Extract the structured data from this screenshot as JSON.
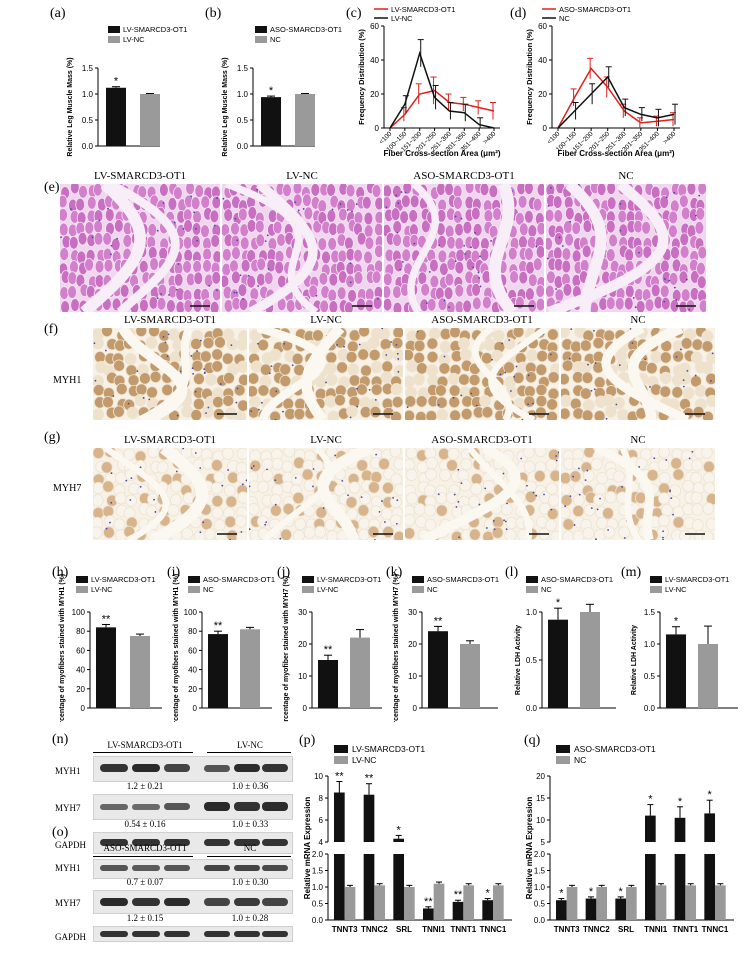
{
  "panel_labels": {
    "a": "(a)",
    "b": "(b)",
    "c": "(c)",
    "d": "(d)",
    "e": "(e)",
    "f": "(f)",
    "g": "(g)",
    "h": "(h)",
    "i": "(i)",
    "j": "(j)",
    "k": "(k)",
    "l": "(l)",
    "m": "(m)",
    "n": "(n)",
    "o": "(o)",
    "p": "(p)",
    "q": "(q)"
  },
  "colors": {
    "black": "#111111",
    "gray": "#9a9a9a",
    "red": "#e0201b",
    "he_pink": "#d98ad2",
    "ihc_brown": "#c9a47a",
    "blot_band": "#2f2f2f"
  },
  "histology": {
    "groups": [
      "LV-SMARCD3-OT1",
      "LV-NC",
      "ASO-SMARCD3-OT1",
      "NC"
    ],
    "row_f_label": "MYH1",
    "row_g_label": "MYH7"
  },
  "blots": {
    "n": {
      "headers": [
        "LV-SMARCD3-OT1",
        "LV-NC"
      ],
      "rows": [
        {
          "label": "MYH1",
          "values": [
            "1.2 ± 0.21",
            "1.0 ± 0.36"
          ]
        },
        {
          "label": "MYH7",
          "values": [
            "0.54 ± 0.16",
            "1.0 ± 0.33"
          ]
        },
        {
          "label": "GAPDH",
          "values": [
            "",
            ""
          ]
        }
      ]
    },
    "o": {
      "headers": [
        "ASO-SMARCD3-OT1",
        "NC"
      ],
      "rows": [
        {
          "label": "MYH1",
          "values": [
            "0.7 ± 0.07",
            "1.0 ± 0.30"
          ]
        },
        {
          "label": "MYH7",
          "values": [
            "1.2 ± 0.15",
            "1.0 ± 0.28"
          ]
        },
        {
          "label": "GAPDH",
          "values": [
            "",
            ""
          ]
        }
      ]
    }
  },
  "chart_data": [
    {
      "id": "a",
      "type": "bar",
      "ylabel": "Relative Leg Muscle Mass (%)",
      "ylim": [
        0,
        1.5
      ],
      "yticks": [
        "0.0",
        "0.5",
        "1.0",
        "1.5"
      ],
      "series": [
        {
          "name": "LV-SMARCD3-OT1",
          "color": "#111111",
          "values": [
            1.12
          ]
        },
        {
          "name": "LV-NC",
          "color": "#9a9a9a",
          "values": [
            1.0
          ]
        }
      ],
      "errors": [
        0.02,
        0.01
      ],
      "annotations": [
        "*",
        ""
      ]
    },
    {
      "id": "b",
      "type": "bar",
      "ylabel": "Relative Leg Muscle Mass (%)",
      "ylim": [
        0,
        1.5
      ],
      "yticks": [
        "0.0",
        "0.5",
        "1.0",
        "1.5"
      ],
      "series": [
        {
          "name": "ASO-SMARCD3-OT1",
          "color": "#111111",
          "values": [
            0.94
          ]
        },
        {
          "name": "NC",
          "color": "#9a9a9a",
          "values": [
            1.0
          ]
        }
      ],
      "errors": [
        0.02,
        0.01
      ],
      "annotations": [
        "*",
        ""
      ]
    },
    {
      "id": "c",
      "type": "line",
      "xlabel": "Fiber Cross-section Area (μm²)",
      "ylabel": "Frequency Distribution (%)",
      "ylim": [
        0,
        60
      ],
      "yticks": [
        "0",
        "20",
        "40",
        "60"
      ],
      "categories": [
        "<100",
        "100~150",
        "151~200",
        "201~250",
        "251~300",
        "301~350",
        "351~400",
        ">400"
      ],
      "series": [
        {
          "name": "LV-SMARCD3-OT1",
          "color": "#e0201b",
          "values": [
            0,
            8,
            20,
            22,
            15,
            14,
            12,
            10
          ],
          "errors": [
            0,
            4,
            6,
            8,
            5,
            4,
            4,
            5
          ]
        },
        {
          "name": "LV-NC",
          "color": "#111111",
          "values": [
            0,
            14,
            44,
            18,
            10,
            9,
            2,
            0
          ],
          "errors": [
            0,
            5,
            8,
            7,
            5,
            5,
            4,
            0
          ]
        }
      ]
    },
    {
      "id": "d",
      "type": "line",
      "xlabel": "Fiber Cross-section Area (μm²)",
      "ylabel": "Frequency Distribution (%)",
      "ylim": [
        0,
        60
      ],
      "yticks": [
        "0",
        "20",
        "40",
        "60"
      ],
      "categories": [
        "<100",
        "100~150",
        "151~200",
        "201~250",
        "251~300",
        "301~350",
        "351~400",
        ">400"
      ],
      "series": [
        {
          "name": "ASO-SMARCD3-OT1",
          "color": "#e0201b",
          "values": [
            0,
            18,
            35,
            24,
            10,
            3,
            4,
            5
          ],
          "errors": [
            0,
            5,
            6,
            6,
            4,
            3,
            3,
            4
          ]
        },
        {
          "name": "NC",
          "color": "#111111",
          "values": [
            0,
            10,
            20,
            30,
            12,
            8,
            6,
            8
          ],
          "errors": [
            0,
            5,
            6,
            6,
            5,
            4,
            5,
            6
          ]
        }
      ]
    },
    {
      "id": "h",
      "type": "bar",
      "ylabel": "The percentage of myofibers stained with MYH1 (%)",
      "ylim": [
        0,
        100
      ],
      "yticks": [
        "0",
        "20",
        "40",
        "60",
        "80",
        "100"
      ],
      "series": [
        {
          "name": "LV-SMARCD3-OT1",
          "color": "#111111",
          "values": [
            84
          ]
        },
        {
          "name": "LV-NC",
          "color": "#9a9a9a",
          "values": [
            75
          ]
        }
      ],
      "errors": [
        3,
        2
      ],
      "annotations": [
        "**",
        ""
      ]
    },
    {
      "id": "i",
      "type": "bar",
      "ylabel": "The percentage of myofibers stained with MYH1 (%)",
      "ylim": [
        0,
        100
      ],
      "yticks": [
        "0",
        "20",
        "40",
        "60",
        "80",
        "100"
      ],
      "series": [
        {
          "name": "ASO-SMARCD3-OT1",
          "color": "#111111",
          "values": [
            77
          ]
        },
        {
          "name": "NC",
          "color": "#9a9a9a",
          "values": [
            82
          ]
        }
      ],
      "errors": [
        3,
        2
      ],
      "annotations": [
        "**",
        ""
      ]
    },
    {
      "id": "j",
      "type": "bar",
      "ylabel": "The percentage of myofiber stained with MYH7 (%)",
      "ylim": [
        0,
        30
      ],
      "yticks": [
        "0",
        "10",
        "20",
        "30"
      ],
      "series": [
        {
          "name": "LV-SMARCD3-OT1",
          "color": "#111111",
          "values": [
            15
          ]
        },
        {
          "name": "LV-NC",
          "color": "#9a9a9a",
          "values": [
            22
          ]
        }
      ],
      "errors": [
        1.5,
        2.5
      ],
      "annotations": [
        "**",
        ""
      ]
    },
    {
      "id": "k",
      "type": "bar",
      "ylabel": "The percentage of myofibers stained with MYH7 (%)",
      "ylim": [
        0,
        30
      ],
      "yticks": [
        "0",
        "10",
        "20",
        "30"
      ],
      "series": [
        {
          "name": "ASO-SMARCD3-OT1",
          "color": "#111111",
          "values": [
            24
          ]
        },
        {
          "name": "NC",
          "color": "#9a9a9a",
          "values": [
            20
          ]
        }
      ],
      "errors": [
        1.5,
        1
      ],
      "annotations": [
        "**",
        ""
      ]
    },
    {
      "id": "l",
      "type": "bar",
      "ylabel": "Relative LDH Activity",
      "ylim": [
        0,
        1.0
      ],
      "yticks": [
        "0.0",
        "0.5",
        "1.0"
      ],
      "series": [
        {
          "name": "ASO-SMARCD3-OT1",
          "color": "#111111",
          "values": [
            0.92
          ]
        },
        {
          "name": "NC",
          "color": "#9a9a9a",
          "values": [
            1.0
          ]
        }
      ],
      "errors": [
        0.12,
        0.08
      ],
      "annotations": [
        "*",
        ""
      ]
    },
    {
      "id": "m",
      "type": "bar",
      "ylabel": "Relative LDH Activity",
      "ylim": [
        0,
        1.5
      ],
      "yticks": [
        "0.0",
        "0.5",
        "1.0",
        "1.5"
      ],
      "series": [
        {
          "name": "LV-SMARCD3-OT1",
          "color": "#111111",
          "values": [
            1.15
          ]
        },
        {
          "name": "LV-NC",
          "color": "#9a9a9a",
          "values": [
            1.0
          ]
        }
      ],
      "errors": [
        0.12,
        0.28
      ],
      "annotations": [
        "*",
        ""
      ]
    },
    {
      "id": "p",
      "type": "bar",
      "ylabel": "Relative mRNA Expression",
      "categories": [
        "TNNT3",
        "TNNC2",
        "SRL",
        "TNNI1",
        "TNNT1",
        "TNNC1"
      ],
      "yticks_low": [
        "0.0",
        "0.5",
        "1.0",
        "1.5",
        "2.0"
      ],
      "yticks_high": [
        "4",
        "6",
        "8",
        "10"
      ],
      "series": [
        {
          "name": "LV-SMARCD3-OT1",
          "color": "#111111",
          "values": [
            8.5,
            8.3,
            4.3,
            0.35,
            0.55,
            0.6
          ],
          "errors": [
            1.0,
            1.0,
            0.3,
            0.05,
            0.05,
            0.05
          ]
        },
        {
          "name": "LV-NC",
          "color": "#9a9a9a",
          "values": [
            1.0,
            1.05,
            1.0,
            1.1,
            1.05,
            1.05
          ],
          "errors": [
            0.05,
            0.05,
            0.05,
            0.05,
            0.05,
            0.05
          ]
        }
      ],
      "annotations": [
        "**",
        "**",
        "*",
        "**",
        "**",
        "*"
      ]
    },
    {
      "id": "q",
      "type": "bar",
      "ylabel": "Relative mRNA Expression",
      "categories": [
        "TNNT3",
        "TNNC2",
        "SRL",
        "TNNI1",
        "TNNT1",
        "TNNC1"
      ],
      "yticks_low": [
        "0.0",
        "0.5",
        "1.0",
        "1.5",
        "2.0"
      ],
      "yticks_high": [
        "5",
        "10",
        "15",
        "20"
      ],
      "series": [
        {
          "name": "ASO-SMARCD3-OT1",
          "color": "#111111",
          "values": [
            0.6,
            0.65,
            0.65,
            11,
            10.5,
            11.5
          ],
          "errors": [
            0.05,
            0.05,
            0.05,
            2.5,
            2.5,
            3
          ]
        },
        {
          "name": "NC",
          "color": "#9a9a9a",
          "values": [
            1.0,
            1.0,
            1.0,
            1.05,
            1.05,
            1.05
          ],
          "errors": [
            0.05,
            0.05,
            0.05,
            0.05,
            0.05,
            0.05
          ]
        }
      ],
      "annotations": [
        "*",
        "*",
        "*",
        "*",
        "*",
        "*"
      ]
    }
  ]
}
